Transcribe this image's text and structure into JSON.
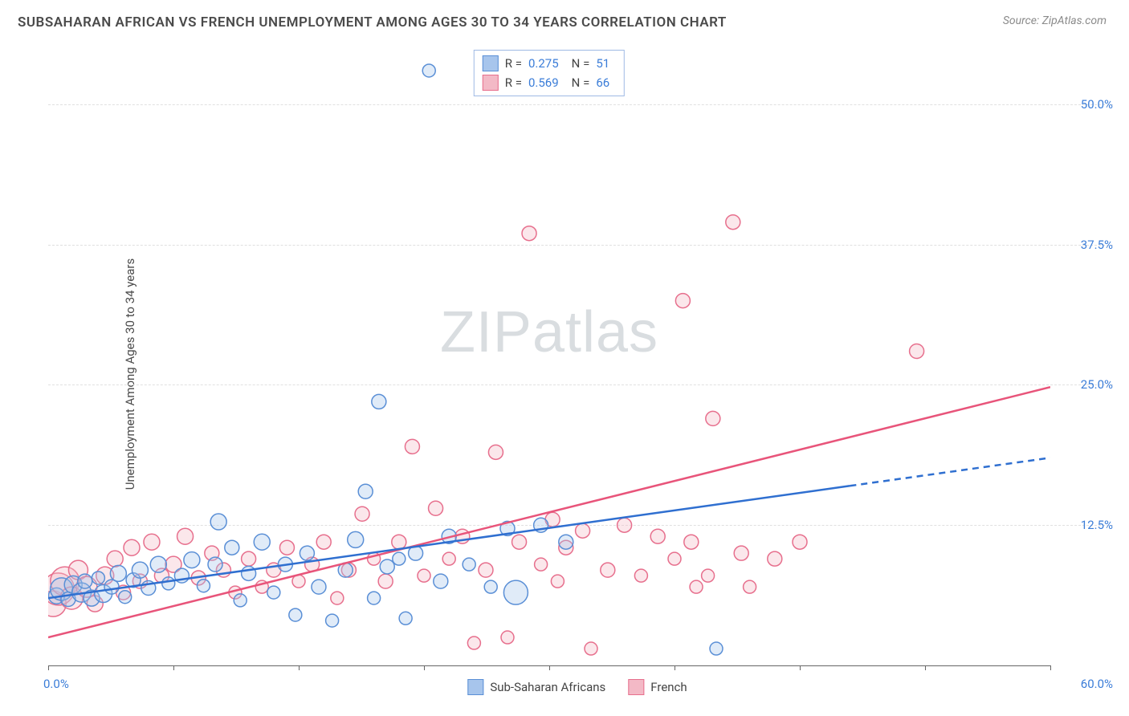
{
  "header": {
    "title": "SUBSAHARAN AFRICAN VS FRENCH UNEMPLOYMENT AMONG AGES 30 TO 34 YEARS CORRELATION CHART",
    "source": "Source: ZipAtlas.com"
  },
  "chart": {
    "type": "scatter",
    "ylabel": "Unemployment Among Ages 30 to 34 years",
    "watermark_a": "ZIP",
    "watermark_b": "atlas",
    "xlim": [
      0,
      60
    ],
    "ylim": [
      0,
      55
    ],
    "xticks": [
      0,
      7.5,
      15,
      22.5,
      30,
      37.5,
      45,
      52.5,
      60
    ],
    "ygrid": [
      12.5,
      25.0,
      37.5,
      50.0
    ],
    "ygrid_labels": [
      "12.5%",
      "25.0%",
      "37.5%",
      "50.0%"
    ],
    "xlabel_min": "0.0%",
    "xlabel_max": "60.0%",
    "grid_color": "#e0e0e0",
    "axis_color": "#666666",
    "background_color": "#ffffff",
    "series": [
      {
        "key": "ssa",
        "name": "Sub-Saharan Africans",
        "color_fill": "#a7c5ec",
        "color_stroke": "#5a8fd6",
        "R": "0.275",
        "N": "51",
        "trend": {
          "x1": 0,
          "y1": 6.0,
          "x2": 48,
          "y2": 16.0,
          "dash_to_x": 60,
          "dash_to_y": 18.5,
          "color": "#2f6fd0",
          "width": 2.5
        },
        "points": [
          {
            "x": 0.5,
            "y": 6.2,
            "r": 10
          },
          {
            "x": 0.8,
            "y": 6.8,
            "r": 14
          },
          {
            "x": 1.2,
            "y": 5.9,
            "r": 9
          },
          {
            "x": 1.5,
            "y": 7.2,
            "r": 11
          },
          {
            "x": 2.0,
            "y": 6.5,
            "r": 12
          },
          {
            "x": 2.2,
            "y": 7.5,
            "r": 9
          },
          {
            "x": 2.6,
            "y": 6.0,
            "r": 10
          },
          {
            "x": 3.0,
            "y": 7.8,
            "r": 8
          },
          {
            "x": 3.3,
            "y": 6.4,
            "r": 11
          },
          {
            "x": 3.8,
            "y": 7.0,
            "r": 9
          },
          {
            "x": 4.2,
            "y": 8.2,
            "r": 10
          },
          {
            "x": 4.6,
            "y": 6.1,
            "r": 8
          },
          {
            "x": 5.1,
            "y": 7.6,
            "r": 9
          },
          {
            "x": 5.5,
            "y": 8.5,
            "r": 10
          },
          {
            "x": 6.0,
            "y": 6.9,
            "r": 9
          },
          {
            "x": 6.6,
            "y": 9.0,
            "r": 10
          },
          {
            "x": 7.2,
            "y": 7.3,
            "r": 8
          },
          {
            "x": 8.0,
            "y": 8.0,
            "r": 9
          },
          {
            "x": 8.6,
            "y": 9.4,
            "r": 10
          },
          {
            "x": 9.3,
            "y": 7.1,
            "r": 8
          },
          {
            "x": 10.2,
            "y": 12.8,
            "r": 10
          },
          {
            "x": 11.0,
            "y": 10.5,
            "r": 9
          },
          {
            "x": 11.5,
            "y": 5.8,
            "r": 8
          },
          {
            "x": 12.0,
            "y": 8.2,
            "r": 9
          },
          {
            "x": 12.8,
            "y": 11.0,
            "r": 10
          },
          {
            "x": 13.5,
            "y": 6.5,
            "r": 8
          },
          {
            "x": 14.2,
            "y": 9.0,
            "r": 9
          },
          {
            "x": 14.8,
            "y": 4.5,
            "r": 8
          },
          {
            "x": 15.5,
            "y": 10.0,
            "r": 9
          },
          {
            "x": 16.2,
            "y": 7.0,
            "r": 9
          },
          {
            "x": 17.0,
            "y": 4.0,
            "r": 8
          },
          {
            "x": 17.8,
            "y": 8.5,
            "r": 9
          },
          {
            "x": 18.4,
            "y": 11.2,
            "r": 10
          },
          {
            "x": 19.0,
            "y": 15.5,
            "r": 9
          },
          {
            "x": 19.5,
            "y": 6.0,
            "r": 8
          },
          {
            "x": 19.8,
            "y": 23.5,
            "r": 9
          },
          {
            "x": 20.3,
            "y": 8.8,
            "r": 9
          },
          {
            "x": 21.0,
            "y": 9.5,
            "r": 8
          },
          {
            "x": 21.4,
            "y": 4.2,
            "r": 8
          },
          {
            "x": 22.0,
            "y": 10.0,
            "r": 9
          },
          {
            "x": 22.8,
            "y": 53.0,
            "r": 8
          },
          {
            "x": 23.5,
            "y": 7.5,
            "r": 9
          },
          {
            "x": 24.0,
            "y": 11.5,
            "r": 9
          },
          {
            "x": 25.2,
            "y": 9.0,
            "r": 8
          },
          {
            "x": 26.5,
            "y": 7.0,
            "r": 8
          },
          {
            "x": 27.5,
            "y": 12.2,
            "r": 9
          },
          {
            "x": 28.0,
            "y": 6.5,
            "r": 15
          },
          {
            "x": 29.5,
            "y": 12.5,
            "r": 9
          },
          {
            "x": 31.0,
            "y": 11.0,
            "r": 9
          },
          {
            "x": 40.0,
            "y": 1.5,
            "r": 8
          },
          {
            "x": 10.0,
            "y": 9.0,
            "r": 9
          }
        ]
      },
      {
        "key": "fr",
        "name": "French",
        "color_fill": "#f3b9c6",
        "color_stroke": "#e76f8d",
        "R": "0.569",
        "N": "66",
        "trend": {
          "x1": 0,
          "y1": 2.5,
          "x2": 60,
          "y2": 24.8,
          "color": "#e8547a",
          "width": 2.5
        },
        "points": [
          {
            "x": 0.3,
            "y": 5.5,
            "r": 16
          },
          {
            "x": 0.6,
            "y": 6.8,
            "r": 20
          },
          {
            "x": 1.0,
            "y": 7.5,
            "r": 18
          },
          {
            "x": 1.4,
            "y": 6.0,
            "r": 14
          },
          {
            "x": 1.8,
            "y": 8.5,
            "r": 12
          },
          {
            "x": 2.3,
            "y": 7.0,
            "r": 13
          },
          {
            "x": 2.8,
            "y": 5.5,
            "r": 10
          },
          {
            "x": 3.4,
            "y": 8.0,
            "r": 11
          },
          {
            "x": 4.0,
            "y": 9.5,
            "r": 10
          },
          {
            "x": 4.5,
            "y": 6.5,
            "r": 9
          },
          {
            "x": 5.0,
            "y": 10.5,
            "r": 10
          },
          {
            "x": 5.5,
            "y": 7.5,
            "r": 9
          },
          {
            "x": 6.2,
            "y": 11.0,
            "r": 10
          },
          {
            "x": 6.8,
            "y": 8.0,
            "r": 9
          },
          {
            "x": 7.5,
            "y": 9.0,
            "r": 10
          },
          {
            "x": 8.2,
            "y": 11.5,
            "r": 10
          },
          {
            "x": 9.0,
            "y": 7.8,
            "r": 9
          },
          {
            "x": 9.8,
            "y": 10.0,
            "r": 9
          },
          {
            "x": 10.5,
            "y": 8.5,
            "r": 9
          },
          {
            "x": 11.2,
            "y": 6.5,
            "r": 8
          },
          {
            "x": 12.0,
            "y": 9.5,
            "r": 9
          },
          {
            "x": 12.8,
            "y": 7.0,
            "r": 8
          },
          {
            "x": 13.5,
            "y": 8.5,
            "r": 9
          },
          {
            "x": 14.3,
            "y": 10.5,
            "r": 9
          },
          {
            "x": 15.0,
            "y": 7.5,
            "r": 8
          },
          {
            "x": 15.8,
            "y": 9.0,
            "r": 9
          },
          {
            "x": 16.5,
            "y": 11.0,
            "r": 9
          },
          {
            "x": 17.3,
            "y": 6.0,
            "r": 8
          },
          {
            "x": 18.0,
            "y": 8.5,
            "r": 9
          },
          {
            "x": 18.8,
            "y": 13.5,
            "r": 9
          },
          {
            "x": 19.5,
            "y": 9.5,
            "r": 8
          },
          {
            "x": 20.2,
            "y": 7.5,
            "r": 9
          },
          {
            "x": 21.0,
            "y": 11.0,
            "r": 9
          },
          {
            "x": 21.8,
            "y": 19.5,
            "r": 9
          },
          {
            "x": 22.5,
            "y": 8.0,
            "r": 8
          },
          {
            "x": 23.2,
            "y": 14.0,
            "r": 9
          },
          {
            "x": 24.0,
            "y": 9.5,
            "r": 8
          },
          {
            "x": 24.8,
            "y": 11.5,
            "r": 9
          },
          {
            "x": 25.5,
            "y": 2.0,
            "r": 8
          },
          {
            "x": 26.2,
            "y": 8.5,
            "r": 9
          },
          {
            "x": 26.8,
            "y": 19.0,
            "r": 9
          },
          {
            "x": 27.5,
            "y": 2.5,
            "r": 8
          },
          {
            "x": 28.2,
            "y": 11.0,
            "r": 9
          },
          {
            "x": 28.8,
            "y": 38.5,
            "r": 9
          },
          {
            "x": 29.5,
            "y": 9.0,
            "r": 8
          },
          {
            "x": 30.2,
            "y": 13.0,
            "r": 9
          },
          {
            "x": 31.0,
            "y": 10.5,
            "r": 9
          },
          {
            "x": 32.0,
            "y": 12.0,
            "r": 9
          },
          {
            "x": 32.5,
            "y": 1.5,
            "r": 8
          },
          {
            "x": 33.5,
            "y": 8.5,
            "r": 9
          },
          {
            "x": 34.5,
            "y": 12.5,
            "r": 9
          },
          {
            "x": 35.5,
            "y": 8.0,
            "r": 8
          },
          {
            "x": 36.5,
            "y": 11.5,
            "r": 9
          },
          {
            "x": 37.5,
            "y": 9.5,
            "r": 8
          },
          {
            "x": 38.0,
            "y": 32.5,
            "r": 9
          },
          {
            "x": 38.5,
            "y": 11.0,
            "r": 9
          },
          {
            "x": 39.5,
            "y": 8.0,
            "r": 8
          },
          {
            "x": 39.8,
            "y": 22.0,
            "r": 9
          },
          {
            "x": 41.0,
            "y": 39.5,
            "r": 9
          },
          {
            "x": 41.5,
            "y": 10.0,
            "r": 9
          },
          {
            "x": 42.0,
            "y": 7.0,
            "r": 8
          },
          {
            "x": 43.5,
            "y": 9.5,
            "r": 9
          },
          {
            "x": 45.0,
            "y": 11.0,
            "r": 9
          },
          {
            "x": 52.0,
            "y": 28.0,
            "r": 9
          },
          {
            "x": 38.8,
            "y": 7.0,
            "r": 8
          },
          {
            "x": 30.5,
            "y": 7.5,
            "r": 8
          }
        ]
      }
    ]
  },
  "stats_labels": {
    "R": "R =",
    "N": "N ="
  },
  "colors": {
    "title": "#4a4a4a",
    "source": "#8a8a8a",
    "value": "#3b7dd8",
    "watermark": "#d9dde0"
  }
}
